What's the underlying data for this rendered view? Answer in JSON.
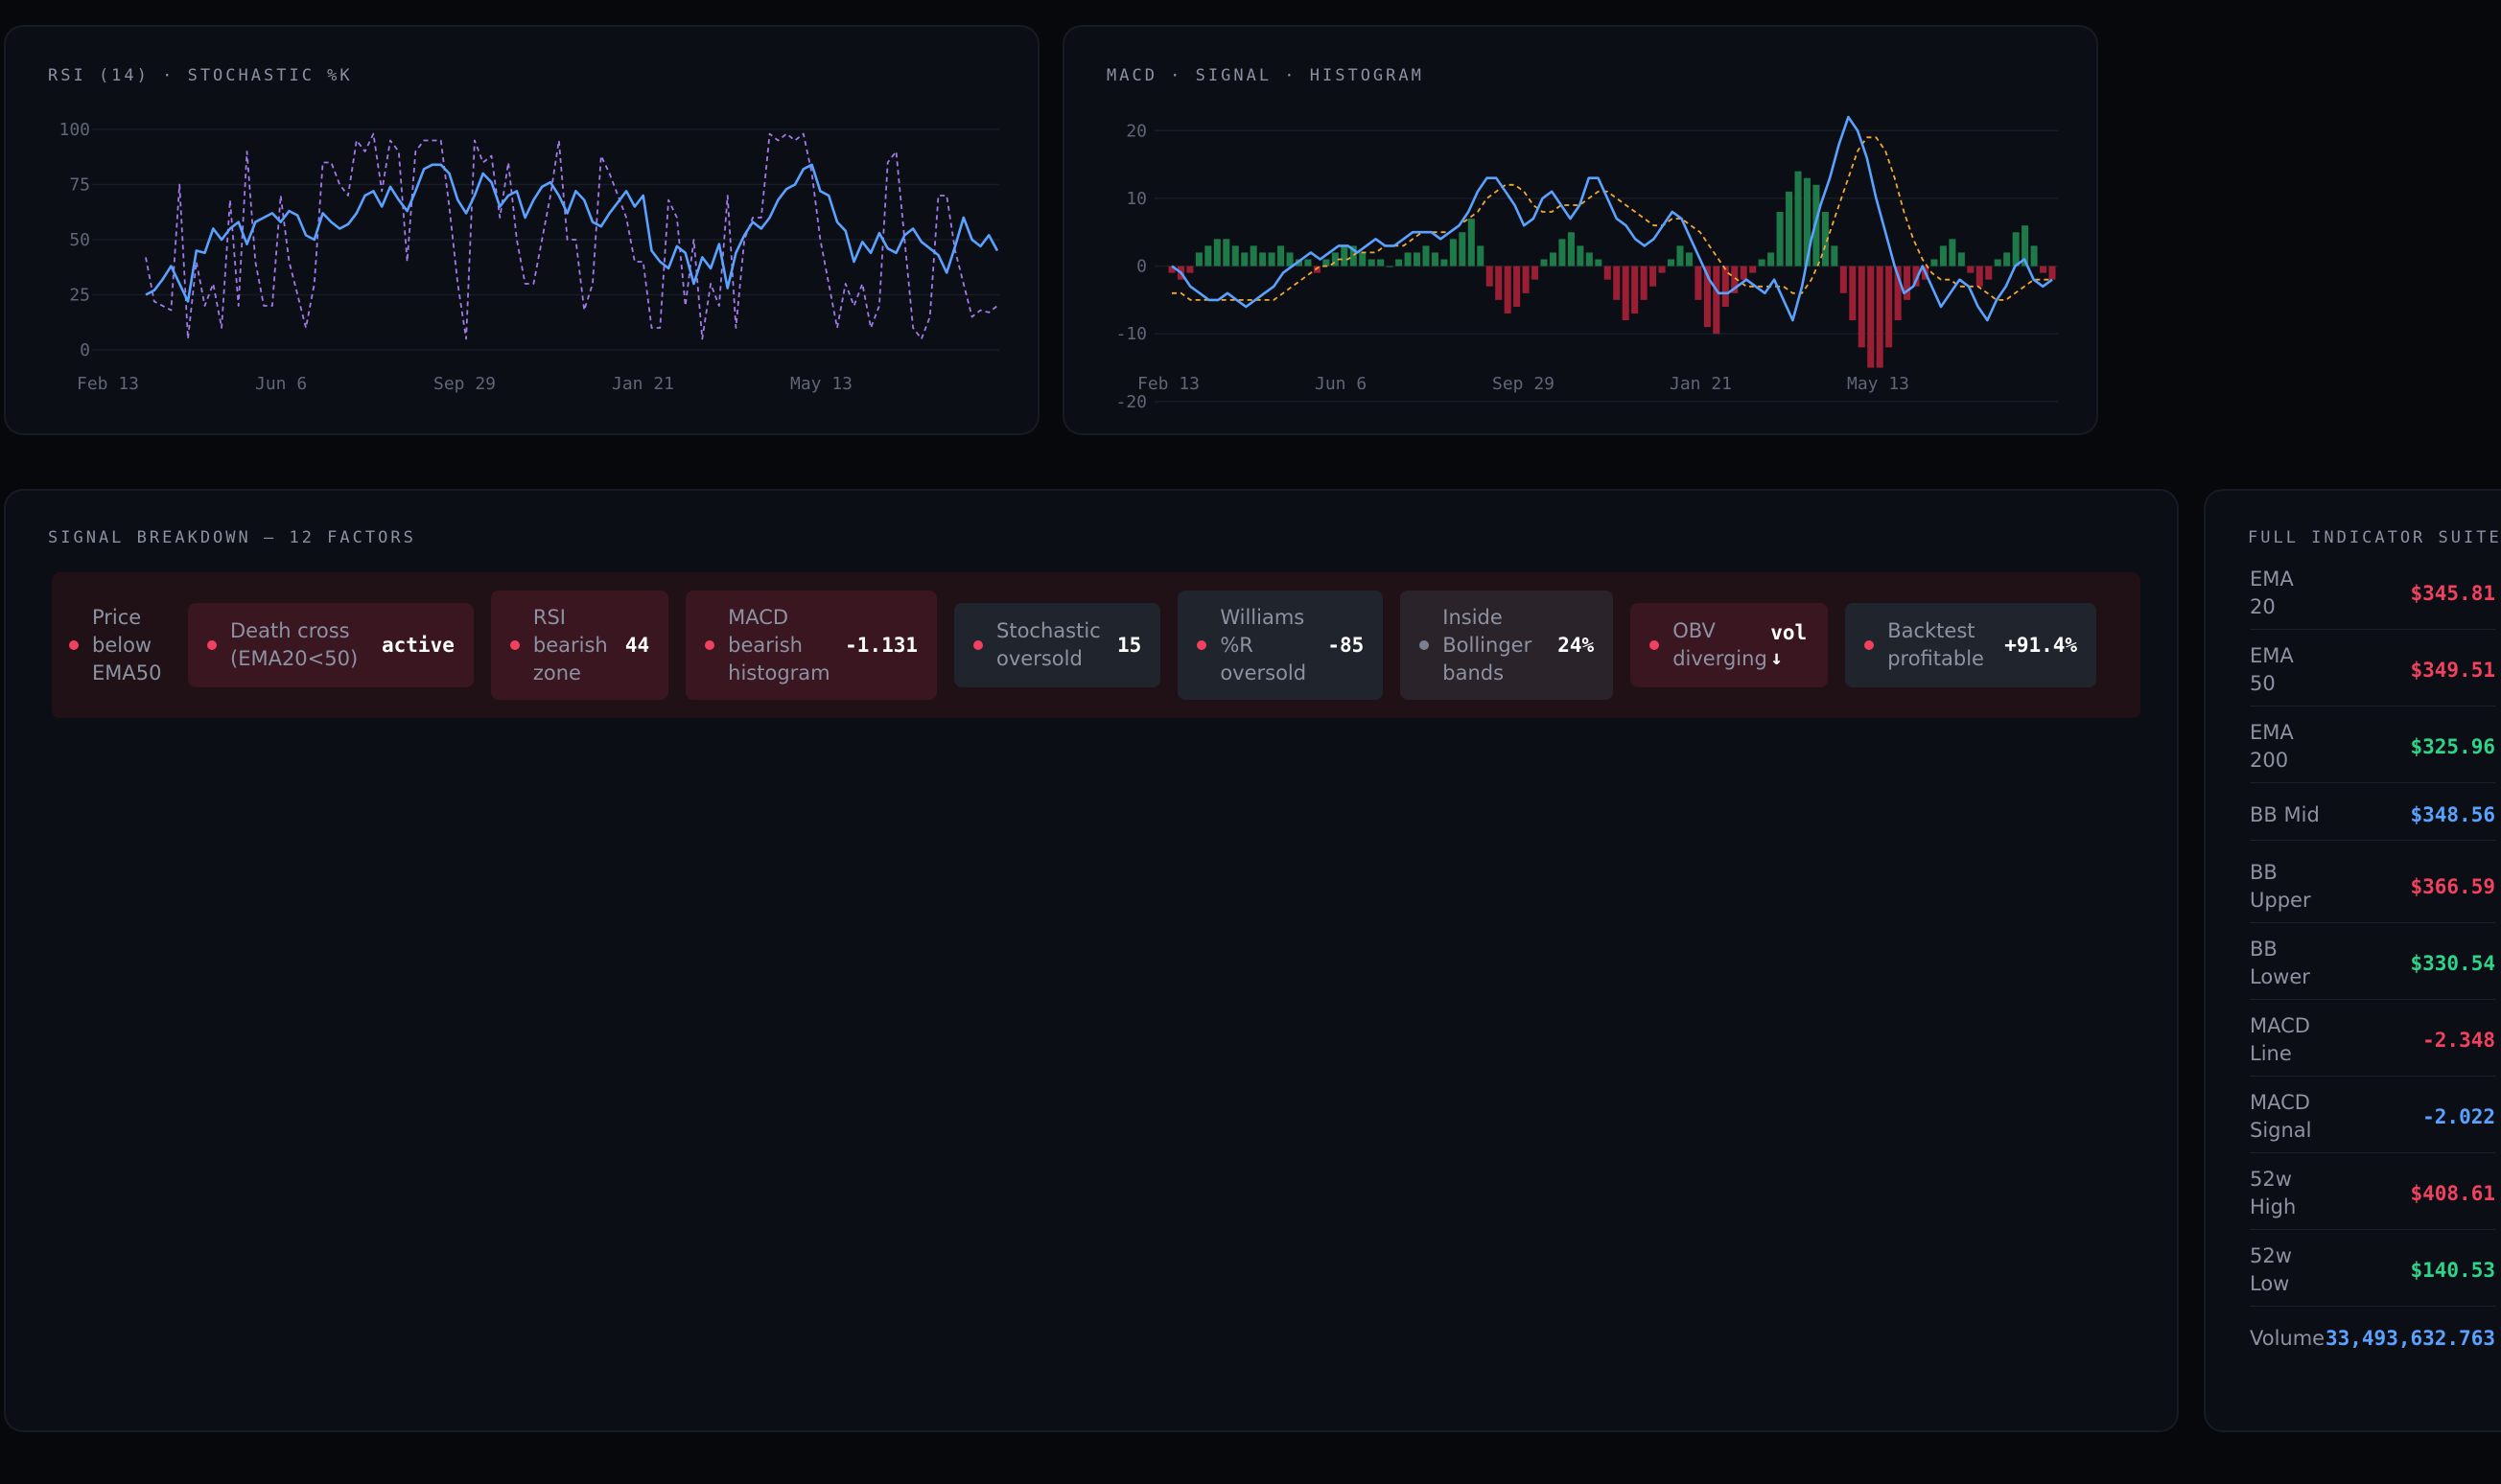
{
  "rsi_panel": {
    "title": "RSI (14) · STOCHASTIC %K"
  },
  "macd_panel": {
    "title": "MACD · SIGNAL · HISTOGRAM"
  },
  "chart_data": [
    {
      "type": "line",
      "title": "RSI (14) · STOCHASTIC %K",
      "x_ticks": [
        "Feb 13",
        "Jun 6",
        "Sep 29",
        "Jan 21",
        "May 13"
      ],
      "y_ticks": [
        0,
        25,
        50,
        75,
        100
      ],
      "ylim": [
        0,
        100
      ],
      "series": [
        {
          "style": "solid",
          "color": "#5aa2ff",
          "values": [
            25,
            27,
            32,
            38,
            30,
            22,
            45,
            44,
            55,
            50,
            55,
            58,
            48,
            58,
            60,
            62,
            58,
            63,
            61,
            52,
            50,
            62,
            58,
            55,
            57,
            62,
            70,
            72,
            65,
            74,
            68,
            63,
            72,
            82,
            84,
            84,
            80,
            68,
            62,
            70,
            80,
            76,
            65,
            70,
            72,
            60,
            68,
            74,
            76,
            70,
            62,
            72,
            68,
            58,
            56,
            62,
            67,
            72,
            65,
            70,
            45,
            40,
            37,
            47,
            44,
            30,
            42,
            37,
            48,
            28,
            44,
            52,
            58,
            55,
            60,
            68,
            73,
            75,
            82,
            84,
            72,
            70,
            58,
            54,
            40,
            49,
            44,
            53,
            46,
            44,
            52,
            55,
            49,
            46,
            43,
            35,
            47,
            60,
            50,
            47,
            52,
            45
          ]
        },
        {
          "style": "dashed",
          "color": "#a07ae8",
          "values": [
            42,
            22,
            20,
            18,
            75,
            5,
            40,
            20,
            30,
            10,
            68,
            20,
            90,
            40,
            20,
            20,
            70,
            40,
            25,
            10,
            30,
            85,
            85,
            75,
            70,
            95,
            90,
            98,
            72,
            95,
            90,
            40,
            90,
            95,
            95,
            95,
            65,
            30,
            5,
            95,
            85,
            88,
            60,
            85,
            50,
            30,
            30,
            50,
            70,
            95,
            50,
            50,
            18,
            30,
            88,
            80,
            70,
            60,
            40,
            40,
            10,
            10,
            68,
            60,
            20,
            50,
            5,
            30,
            20,
            70,
            10,
            50,
            60,
            60,
            98,
            95,
            98,
            95,
            98,
            80,
            50,
            30,
            10,
            30,
            20,
            30,
            10,
            20,
            85,
            90,
            50,
            10,
            5,
            15,
            70,
            70,
            45,
            30,
            15,
            18,
            17,
            20
          ]
        }
      ]
    },
    {
      "type": "line",
      "title": "MACD · SIGNAL · HISTOGRAM",
      "x_ticks": [
        "Feb 13",
        "Jun 6",
        "Sep 29",
        "Jan 21",
        "May 13"
      ],
      "y_ticks": [
        20,
        10,
        0,
        -10,
        -20
      ],
      "ylim": [
        -22,
        24
      ],
      "series": [
        {
          "name": "MACD",
          "style": "solid",
          "color": "#5aa2ff",
          "values": [
            0,
            -1,
            -3,
            -4,
            -5,
            -5,
            -4,
            -5,
            -6,
            -5,
            -4,
            -3,
            -1,
            0,
            1,
            2,
            1,
            2,
            3,
            3,
            2,
            3,
            4,
            3,
            3,
            4,
            5,
            5,
            5,
            4,
            5,
            6,
            8,
            11,
            13,
            13,
            11,
            9,
            6,
            7,
            10,
            11,
            9,
            7,
            9,
            13,
            13,
            10,
            7,
            6,
            4,
            3,
            4,
            6,
            8,
            7,
            4,
            1,
            -2,
            -4,
            -4,
            -3,
            -2,
            -3,
            -4,
            -2,
            -5,
            -8,
            -3,
            4,
            9,
            13,
            18,
            22,
            20,
            16,
            10,
            5,
            0,
            -4,
            -3,
            0,
            -3,
            -6,
            -4,
            -2,
            -3,
            -6,
            -8,
            -5,
            -3,
            0,
            1,
            -2,
            -3,
            -2
          ]
        },
        {
          "name": "Signal",
          "style": "dashed",
          "color": "#f0a832",
          "values": [
            -4,
            -4,
            -5,
            -5,
            -5,
            -5,
            -5,
            -5,
            -5,
            -5,
            -5,
            -5,
            -4,
            -3,
            -2,
            -1,
            0,
            0,
            1,
            1,
            2,
            2,
            2,
            3,
            3,
            3,
            4,
            5,
            5,
            5,
            5,
            6,
            7,
            8,
            10,
            11,
            12,
            12,
            11,
            9,
            8,
            8,
            9,
            9,
            9,
            10,
            11,
            11,
            10,
            9,
            8,
            7,
            6,
            6,
            7,
            7,
            6,
            5,
            3,
            1,
            -1,
            -2,
            -3,
            -3,
            -3,
            -3,
            -3,
            -4,
            -4,
            -2,
            1,
            5,
            9,
            13,
            17,
            19,
            19,
            17,
            13,
            8,
            4,
            1,
            -1,
            -2,
            -2,
            -3,
            -3,
            -3,
            -4,
            -5,
            -5,
            -4,
            -3,
            -2,
            -2,
            -2
          ]
        },
        {
          "name": "Histogram",
          "style": "bar",
          "values": [
            -1,
            -2,
            -1,
            2,
            3,
            4,
            4,
            3,
            2,
            3,
            2,
            2,
            3,
            2,
            1,
            1,
            -1,
            1,
            2,
            3,
            3,
            2,
            1,
            1,
            0,
            1,
            2,
            2,
            3,
            2,
            1,
            4,
            5,
            7,
            3,
            -3,
            -5,
            -7,
            -6,
            -4,
            -2,
            1,
            2,
            4,
            5,
            3,
            2,
            1,
            -2,
            -5,
            -8,
            -7,
            -5,
            -3,
            -1,
            1,
            3,
            2,
            -5,
            -9,
            -10,
            -6,
            -4,
            -2,
            -1,
            1,
            2,
            8,
            11,
            14,
            13,
            12,
            8,
            3,
            -4,
            -8,
            -12,
            -15,
            -15,
            -12,
            -8,
            -5,
            -3,
            -2,
            1,
            3,
            4,
            2,
            -1,
            -3,
            -2,
            1,
            2,
            5,
            6,
            3,
            -1,
            -2
          ]
        }
      ]
    }
  ],
  "signal_panel": {
    "title": "SIGNAL BREAKDOWN — 12 FACTORS",
    "chips": [
      {
        "label": "Price below EMA50",
        "value": ""
      },
      {
        "label": "Death cross (EMA20<50)",
        "value": "active"
      },
      {
        "label": "RSI bearish zone",
        "value": "44"
      },
      {
        "label": "MACD bearish histogram",
        "value": "-1.131"
      },
      {
        "label": "Stochastic oversold",
        "value": "15"
      },
      {
        "label": "Williams %R oversold",
        "value": "-85"
      },
      {
        "label": "Inside Bollinger bands",
        "value": "24%"
      },
      {
        "label": "OBV diverging",
        "value": "vol ↓"
      },
      {
        "label": "Backtest profitable",
        "value": "+91.4%"
      }
    ]
  },
  "suite_panel": {
    "title": "FULL INDICATOR SUITE",
    "rows": [
      {
        "label": "EMA 20",
        "value": "$345.81",
        "color": "#f0425e"
      },
      {
        "label": "EMA 50",
        "value": "$349.51",
        "color": "#f0425e"
      },
      {
        "label": "EMA 200",
        "value": "$325.96",
        "color": "#2ed48a"
      },
      {
        "label": "BB Mid",
        "value": "$348.56",
        "color": "#5aa2ff"
      },
      {
        "label": "BB Upper",
        "value": "$366.59",
        "color": "#f0425e"
      },
      {
        "label": "BB Lower",
        "value": "$330.54",
        "color": "#2ed48a"
      },
      {
        "label": "MACD Line",
        "value": "-2.348",
        "color": "#f0425e"
      },
      {
        "label": "MACD Signal",
        "value": "-2.022",
        "color": "#5aa2ff"
      },
      {
        "label": "52w High",
        "value": "$408.61",
        "color": "#f0425e"
      },
      {
        "label": "52w Low",
        "value": "$140.53",
        "color": "#2ed48a"
      },
      {
        "label": "Volume",
        "value": "33,493,632.763",
        "color": "#5aa2ff"
      }
    ]
  }
}
